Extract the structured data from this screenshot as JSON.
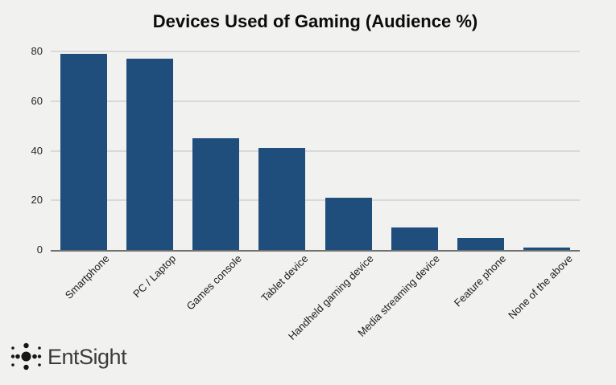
{
  "page": {
    "background_color": "#f1f1ef"
  },
  "chart_data": {
    "type": "bar",
    "title": "Devices Used of Gaming (Audience %)",
    "categories": [
      "Smartphone",
      "PC / Laptop",
      "Games console",
      "Tablet device",
      "Handheld gaming device",
      "Media streaming device",
      "Feature phone",
      "None of the above"
    ],
    "values": [
      79,
      77,
      45,
      41,
      21,
      9,
      5,
      1
    ],
    "xlabel": "",
    "ylabel": "",
    "ylim": [
      0,
      80
    ],
    "yticks": [
      0,
      20,
      40,
      60,
      80
    ],
    "bar_color": "#1f4e7d",
    "gridline_color": "#d9d9d9",
    "axis_color": "#707070",
    "grid": "horizontal",
    "legend": "none",
    "xlabel_rotation_deg": 45
  },
  "branding": {
    "logo_text": "EntSight",
    "logo_icon": "dot-cluster-icon",
    "logo_text_color": "#3b3b3b",
    "logo_dot_color": "#161616"
  }
}
